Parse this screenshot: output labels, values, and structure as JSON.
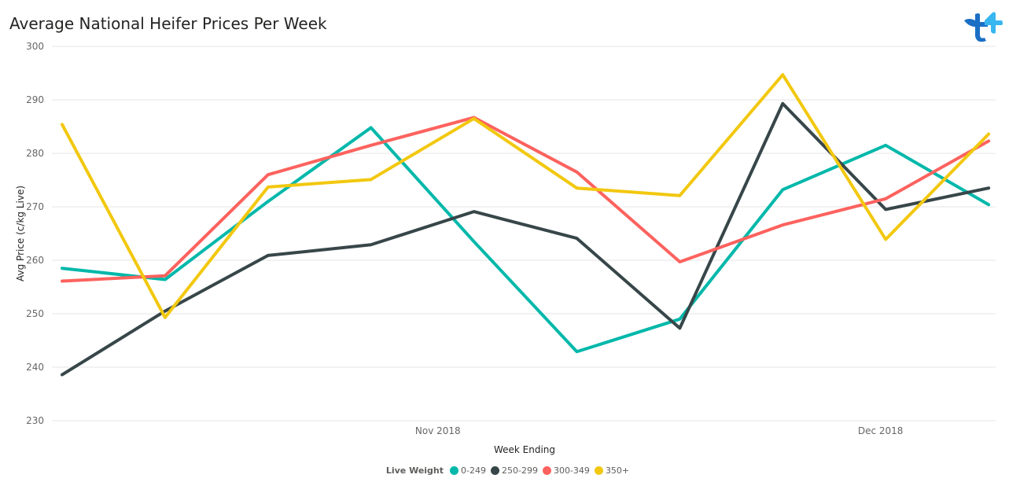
{
  "title": "Average National Heifer Prices Per Week",
  "logo_icon": "brand-logo-icon",
  "chart_data": {
    "type": "line",
    "title": "Average National Heifer Prices Per Week",
    "xlabel": "Week Ending",
    "ylabel": "Avg Price (c/kg Live)",
    "ylim": [
      230,
      300
    ],
    "yticks": [
      "300",
      "290",
      "280",
      "270",
      "260",
      "250",
      "240",
      "230"
    ],
    "xticks": [
      {
        "label": "Nov 2018",
        "index": 3.65
      },
      {
        "label": "Dec 2018",
        "index": 7.95
      }
    ],
    "grid": true,
    "legend_position": "bottom",
    "legend_title": "Live Weight",
    "series": [
      {
        "name": "0-249",
        "color": "#01B8AA",
        "values": [
          258.5,
          256.4,
          271.0,
          284.8,
          263.5,
          242.9,
          249.0,
          273.2,
          281.5,
          270.4
        ]
      },
      {
        "name": "250-299",
        "color": "#374649",
        "values": [
          238.6,
          250.5,
          260.9,
          262.9,
          269.1,
          264.1,
          247.3,
          289.3,
          269.5,
          273.5
        ]
      },
      {
        "name": "300-349",
        "color": "#FD625E",
        "values": [
          256.1,
          257.1,
          276.0,
          281.5,
          286.7,
          276.5,
          259.7,
          266.6,
          271.5,
          282.3
        ]
      },
      {
        "name": "350+",
        "color": "#F2C80F",
        "values": [
          285.4,
          249.3,
          273.7,
          275.1,
          286.5,
          273.5,
          272.1,
          294.7,
          263.9,
          283.6
        ]
      }
    ]
  }
}
